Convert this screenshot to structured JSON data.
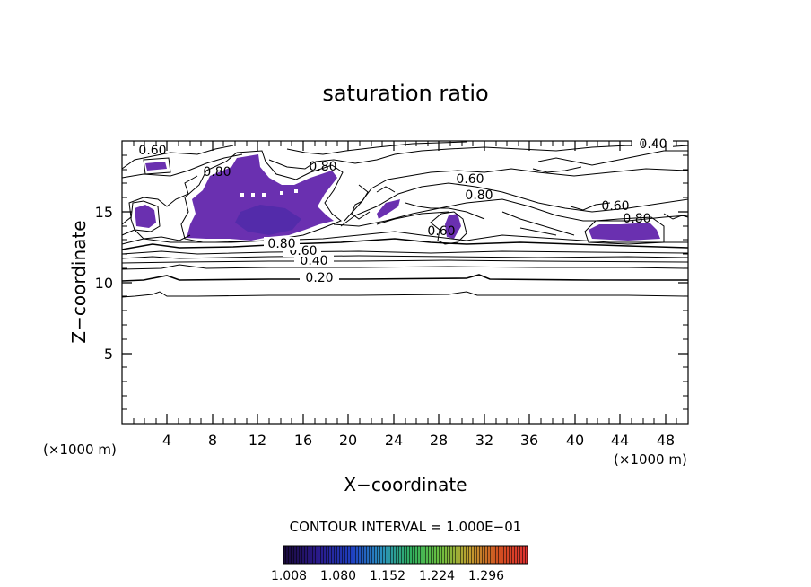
{
  "chart_data": {
    "type": "contour",
    "title": "saturation ratio",
    "xlabel": "X−coordinate",
    "ylabel": "Z−coordinate",
    "x_unit_left": "(×1000 m)",
    "x_unit_right": "(×1000 m)",
    "xlim": [
      0,
      50
    ],
    "ylim": [
      0,
      20
    ],
    "x_ticks": [
      4,
      8,
      12,
      16,
      20,
      24,
      28,
      32,
      36,
      40,
      44,
      48
    ],
    "y_ticks": [
      5,
      10,
      15
    ],
    "contour_interval_label": "CONTOUR INTERVAL = 1.000E−01",
    "contour_labels": [
      {
        "text": "0.20",
        "x": 17.2,
        "y": 10.3
      },
      {
        "text": "0.40",
        "x": 16.8,
        "y": 11.4
      },
      {
        "text": "0.60",
        "x": 15.8,
        "y": 12.1
      },
      {
        "text": "0.80",
        "x": 13.7,
        "y": 12.7
      },
      {
        "text": "0.60",
        "x": 1.6,
        "y": 19.0
      },
      {
        "text": "0.80",
        "x": 7.6,
        "y": 17.9
      },
      {
        "text": "0.80",
        "x": 17.2,
        "y": 18.0
      },
      {
        "text": "0.60",
        "x": 30.4,
        "y": 17.4
      },
      {
        "text": "0.80",
        "x": 30.8,
        "y": 16.3
      },
      {
        "text": "0.60",
        "x": 28.0,
        "y": 13.6
      },
      {
        "text": "0.40",
        "x": 46.6,
        "y": 19.5
      },
      {
        "text": "0.60",
        "x": 42.5,
        "y": 15.5
      },
      {
        "text": "0.80",
        "x": 45.0,
        "y": 14.6
      }
    ],
    "colorbar": {
      "ticks": [
        "1.008",
        "1.080",
        "1.152",
        "1.224",
        "1.296"
      ],
      "colors": [
        "#1a0a3a",
        "#2a1a8a",
        "#1f3fc0",
        "#2a8fc0",
        "#30b060",
        "#6ac040",
        "#c0a030",
        "#d05020",
        "#e03030"
      ]
    },
    "fill_color": "#6a30b0"
  }
}
